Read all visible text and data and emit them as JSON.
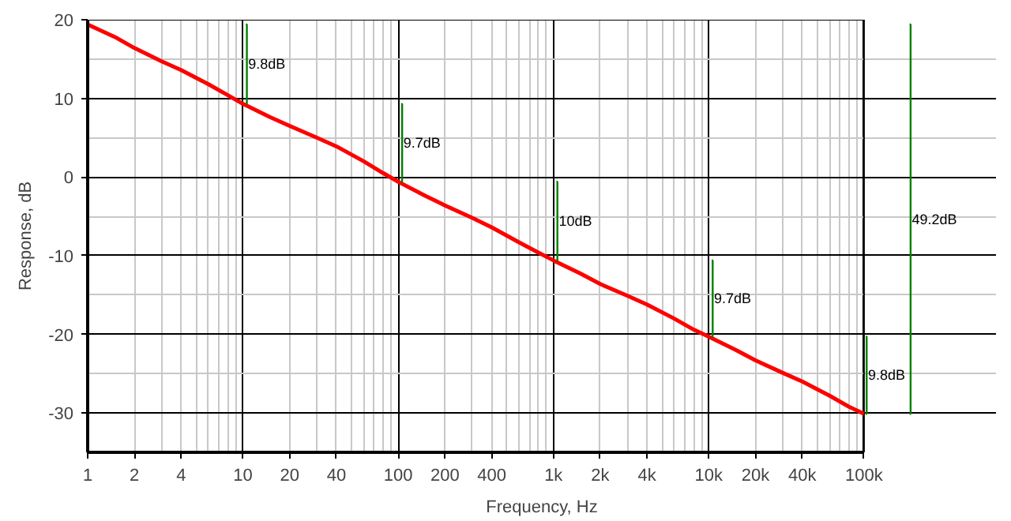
{
  "chart_data": {
    "type": "line",
    "xlabel": "Frequency, Hz",
    "ylabel": "Response, dB",
    "log": "x",
    "grid": true,
    "marker": "none",
    "line_style": "solid",
    "x": [
      1,
      1.5,
      2,
      3,
      4,
      6,
      8,
      10,
      15,
      20,
      30,
      40,
      60,
      80,
      100,
      150,
      200,
      300,
      400,
      600,
      800,
      1000,
      1500,
      2000,
      3000,
      4000,
      6000,
      8000,
      10000,
      15000,
      20000,
      30000,
      40000,
      60000,
      80000,
      100000
    ],
    "series": [
      {
        "color": "#ff0000",
        "values": [
          19.4,
          17.8,
          16.4,
          14.7,
          13.6,
          11.8,
          10.4,
          9.3,
          7.6,
          6.5,
          5.0,
          3.9,
          2.0,
          0.5,
          -0.6,
          -2.4,
          -3.6,
          -5.2,
          -6.4,
          -8.3,
          -9.6,
          -10.6,
          -12.3,
          -13.6,
          -15.1,
          -16.2,
          -18.0,
          -19.4,
          -20.3,
          -22.0,
          -23.3,
          -24.9,
          -26.0,
          -27.8,
          -29.2,
          -30.1
        ]
      }
    ],
    "xlim": [
      1,
      100000
    ],
    "ylim": [
      -35,
      20
    ],
    "xticks": [
      1,
      2,
      4,
      10,
      20,
      40,
      100,
      200,
      400,
      {
        "value": 1000,
        "label": "1k"
      },
      {
        "value": 2000,
        "label": "2k"
      },
      {
        "value": 4000,
        "label": "4k"
      },
      {
        "value": 10000,
        "label": "10k"
      },
      {
        "value": 20000,
        "label": "20k"
      },
      {
        "value": 40000,
        "label": "40k"
      },
      {
        "value": 100000,
        "label": "100k"
      }
    ],
    "yticks": [
      -30,
      -20,
      -10,
      0,
      10,
      20
    ],
    "annotations": [
      "9.8dB",
      "9.7dB",
      "10dB",
      "9.7dB",
      "9.8dB",
      "49.2dB"
    ]
  }
}
